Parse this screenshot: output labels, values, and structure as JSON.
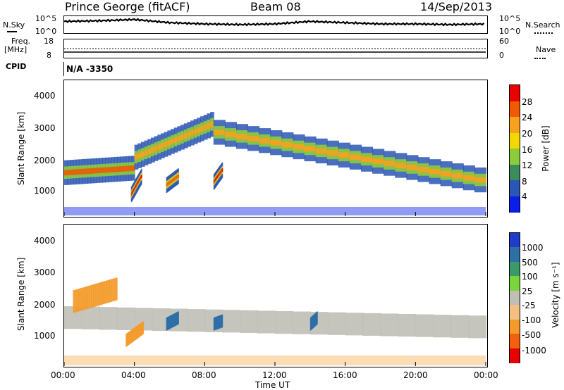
{
  "header": {
    "station": "Prince George (fitACF)",
    "beam": "Beam 08",
    "date": "14/Sep/2013"
  },
  "noise_panel": {
    "left_label": "N.Sky",
    "right_label": "N.Search",
    "left_ticks": [
      "10^5",
      "10^0"
    ],
    "right_ticks": [
      "10^5",
      "10^0"
    ]
  },
  "freq_panel": {
    "left_label_1": "Freq.",
    "left_label_2": "[MHz]",
    "right_label": "Nave",
    "left_ticks": [
      "18",
      "8"
    ],
    "right_ticks": [
      "60",
      "0"
    ]
  },
  "cpid": {
    "label": "CPID",
    "value": "N/A  -3350"
  },
  "power_panel": {
    "ylabel": "Slant Range [km]",
    "yticks": [
      "4000",
      "3000",
      "2000",
      "1000"
    ],
    "colorbar_label": "Power [dB]",
    "colorbar_ticks": [
      "28",
      "24",
      "20",
      "16",
      "12",
      "8",
      "4"
    ],
    "colorbar_colors": [
      "#e80000",
      "#f05a00",
      "#f7a21e",
      "#f0d800",
      "#8ccc3c",
      "#3a8c5a",
      "#2a56b4",
      "#0a1ee6"
    ]
  },
  "velocity_panel": {
    "ylabel": "Slant Range [km]",
    "yticks": [
      "4000",
      "3000",
      "2000",
      "1000"
    ],
    "colorbar_label": "Velocity [m s⁻¹]",
    "colorbar_ticks": [
      "1000",
      "500",
      "100",
      "25",
      "-25",
      "-100",
      "-500",
      "-1000"
    ],
    "colorbar_colors": [
      "#1e3cc8",
      "#2e6fa6",
      "#3b9a6a",
      "#7cd43c",
      "#bfbfb6",
      "#f2c080",
      "#f39a2a",
      "#f06010",
      "#e80000"
    ]
  },
  "xaxis": {
    "label": "Time UT",
    "ticks": [
      "00:00",
      "04:00",
      "08:00",
      "12:00",
      "16:00",
      "20:00",
      "00:00"
    ]
  },
  "chart_data": [
    {
      "type": "line",
      "title": "N.Sky / N.Search",
      "x_units": "hours UT",
      "x": [
        0,
        2,
        4,
        6,
        8,
        10,
        12,
        14,
        16,
        18,
        20,
        22,
        24
      ],
      "series": [
        {
          "values": [
            0.7,
            0.75,
            0.85,
            0.6,
            0.5,
            0.45,
            0.5,
            0.7,
            0.6,
            0.5,
            0.5,
            0.45,
            0.5
          ]
        }
      ]
    },
    {
      "type": "heatmap",
      "title": "Power [dB]",
      "xlabel": "Time UT",
      "ylabel": "Slant Range [km]",
      "xlim": [
        0,
        24
      ],
      "ylim": [
        200,
        4600
      ],
      "zlim": [
        0,
        30
      ],
      "features": [
        {
          "t_start": 0.0,
          "t_end": 4.0,
          "range_center": [
            1600,
            1750
          ],
          "power_peak": 24
        },
        {
          "t_start": 4.0,
          "t_end": 8.5,
          "range_center": [
            2100,
            3200
          ],
          "power_peak": 20
        },
        {
          "t_start": 8.5,
          "t_end": 24.0,
          "range_center": [
            2900,
            1300
          ],
          "power_peak": 22
        },
        {
          "t_start": 3.8,
          "t_end": 4.4,
          "range_center": [
            900,
            1500
          ],
          "power_peak": 28
        },
        {
          "t_start": 5.8,
          "t_end": 6.5,
          "range_center": [
            1200,
            1500
          ],
          "power_peak": 26
        },
        {
          "t_start": 8.5,
          "t_end": 9.0,
          "range_center": [
            1300,
            1700
          ],
          "power_peak": 28
        }
      ]
    },
    {
      "type": "heatmap",
      "title": "Velocity [m s-1]",
      "xlabel": "Time UT",
      "ylabel": "Slant Range [km]",
      "xlim": [
        0,
        24
      ],
      "ylim": [
        200,
        4600
      ],
      "zlim": [
        -1000,
        1000
      ],
      "features": [
        {
          "t_start": 0.0,
          "t_end": 24.0,
          "range_center": [
            1700,
            1400
          ],
          "velocity": 0
        },
        {
          "t_start": 0.5,
          "t_end": 3.0,
          "range_center": [
            2200,
            2600
          ],
          "velocity": -300
        },
        {
          "t_start": 3.5,
          "t_end": 4.5,
          "range_center": [
            1000,
            1400
          ],
          "velocity": -400
        },
        {
          "t_start": 5.8,
          "t_end": 6.5,
          "range_center": [
            1500,
            1700
          ],
          "velocity": 300
        },
        {
          "t_start": 8.5,
          "t_end": 9.0,
          "range_center": [
            1500,
            1600
          ],
          "velocity": 400
        },
        {
          "t_start": 14.0,
          "t_end": 14.4,
          "range_center": [
            1500,
            1700
          ],
          "velocity": 150
        }
      ]
    }
  ]
}
